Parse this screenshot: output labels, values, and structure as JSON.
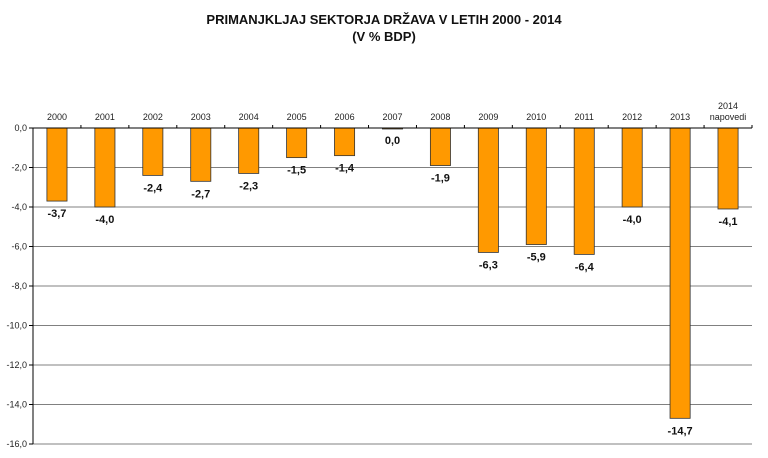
{
  "chart_data": {
    "type": "bar",
    "title": "PRIMANJKLJAJ SEKTORJA DRŽAVA V LETIH 2000 - 2014",
    "subtitle": "(V % BDP)",
    "categories": [
      "2000",
      "2001",
      "2002",
      "2003",
      "2004",
      "2005",
      "2006",
      "2007",
      "2008",
      "2009",
      "2010",
      "2011",
      "2012",
      "2013",
      "2014 napovedi"
    ],
    "category_lines": [
      [
        "2000"
      ],
      [
        "2001"
      ],
      [
        "2002"
      ],
      [
        "2003"
      ],
      [
        "2004"
      ],
      [
        "2005"
      ],
      [
        "2006"
      ],
      [
        "2007"
      ],
      [
        "2008"
      ],
      [
        "2009"
      ],
      [
        "2010"
      ],
      [
        "2011"
      ],
      [
        "2012"
      ],
      [
        "2013"
      ],
      [
        "2014",
        "napovedi"
      ]
    ],
    "values": [
      -3.7,
      -4.0,
      -2.4,
      -2.7,
      -2.3,
      -1.5,
      -1.4,
      0.0,
      -1.9,
      -6.3,
      -5.9,
      -6.4,
      -4.0,
      -14.7,
      -4.1
    ],
    "data_labels": [
      "-3,7",
      "-4,0",
      "-2,4",
      "-2,7",
      "-2,3",
      "-1,5",
      "-1,4",
      "0,0",
      "-1,9",
      "-6,3",
      "-5,9",
      "-6,4",
      "-4,0",
      "-14,7",
      "-4,1"
    ],
    "y_ticks": [
      0,
      -2,
      -4,
      -6,
      -8,
      -10,
      -12,
      -14,
      -16
    ],
    "y_tick_labels": [
      "0,0",
      "-2,0",
      "-4,0",
      "-6,0",
      "-8,0",
      "-10,0",
      "-12,0",
      "-14,0",
      "-16,0"
    ],
    "ylim": [
      -16,
      0
    ],
    "xlabel": "",
    "ylabel": "",
    "grid": true,
    "legend": "none",
    "colors": {
      "bar": "#ff9900",
      "bar_edge": "#333333",
      "grid": "#808080",
      "axis": "#000000"
    }
  }
}
